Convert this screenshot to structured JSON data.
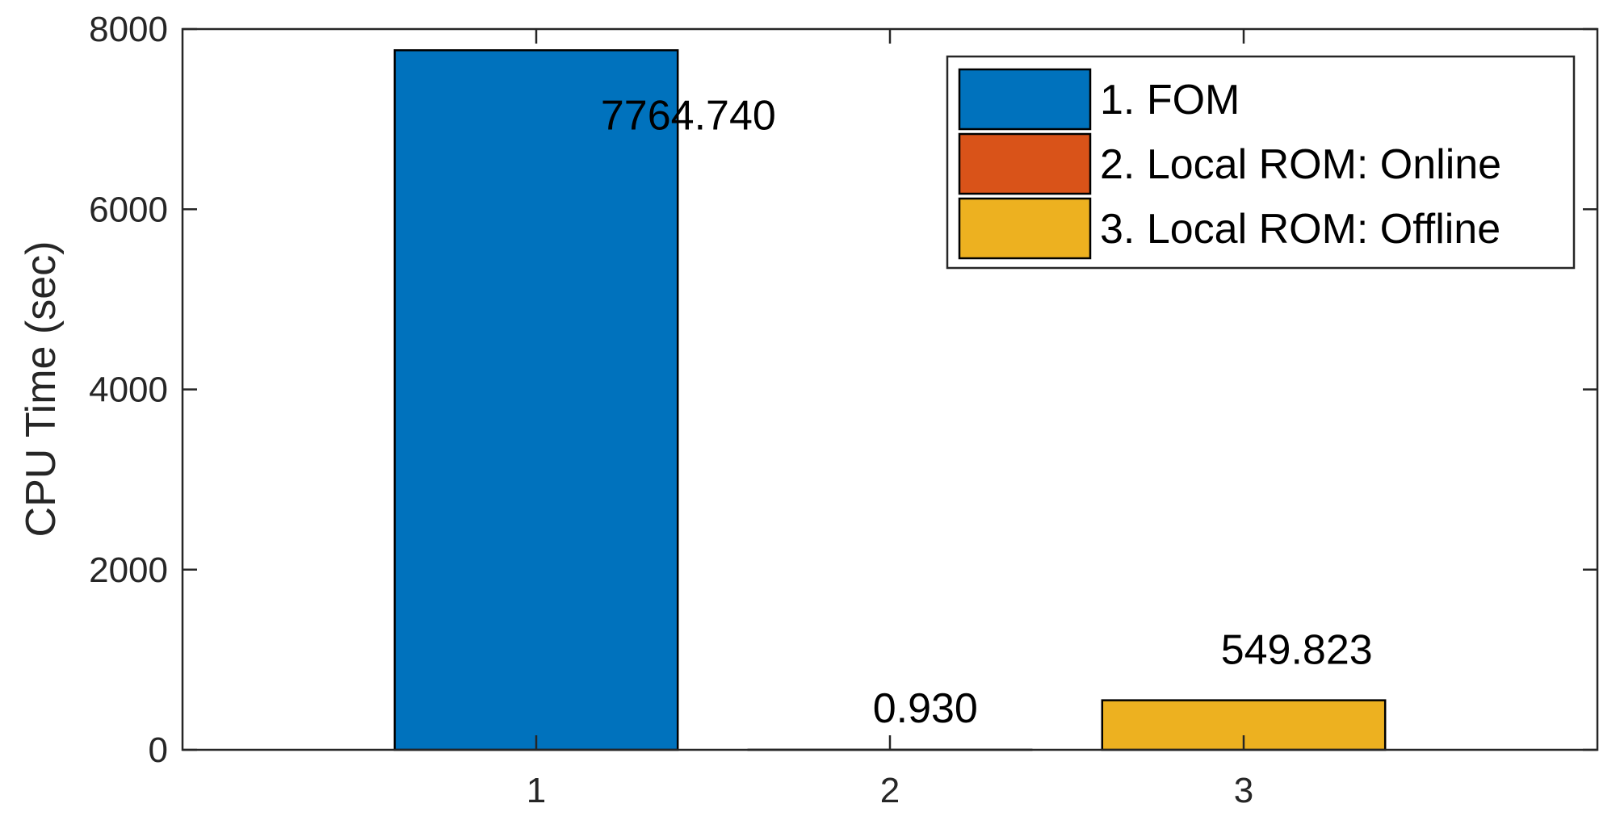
{
  "chart_data": {
    "type": "bar",
    "categories": [
      "1",
      "2",
      "3"
    ],
    "values": [
      7764.74,
      0.93,
      549.823
    ],
    "value_labels": [
      "7764.740",
      "0.930",
      "549.823"
    ],
    "colors": [
      "#0072BD",
      "#D95319",
      "#EDB120"
    ],
    "xlim": [
      0,
      4
    ],
    "ylim": [
      0,
      8000
    ],
    "yticks": [
      0,
      2000,
      4000,
      6000,
      8000
    ],
    "ytick_labels": [
      "0",
      "2000",
      "4000",
      "6000",
      "8000"
    ],
    "xtick_labels": [
      "1",
      "2",
      "3"
    ],
    "xlabel": "",
    "ylabel": "CPU Time (sec)",
    "grid": false,
    "legend_position": "top-right",
    "legend": [
      {
        "label": "1. FOM",
        "color": "#0072BD"
      },
      {
        "label": "2. Local ROM: Online",
        "color": "#D95319"
      },
      {
        "label": "3. Local ROM: Offline",
        "color": "#EDB120"
      }
    ]
  }
}
